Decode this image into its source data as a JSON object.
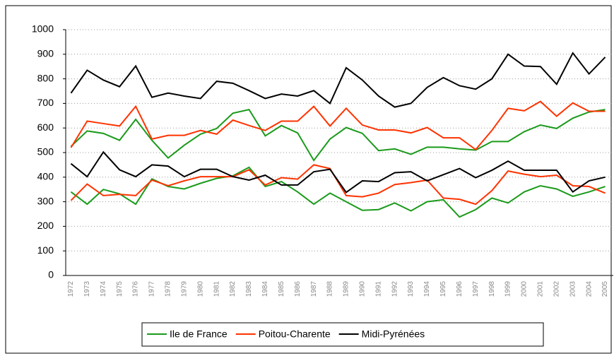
{
  "chart_data": {
    "type": "line",
    "categories": [
      "1972",
      "1973",
      "1974",
      "1975",
      "1976",
      "1977",
      "1978",
      "1979",
      "1980",
      "1981",
      "1982",
      "1983",
      "1984",
      "1985",
      "1986",
      "1987",
      "1988",
      "1989",
      "1990",
      "1991",
      "1992",
      "1993",
      "1994",
      "1995",
      "1996",
      "1997",
      "1998",
      "1999",
      "2000",
      "2001",
      "2002",
      "2003",
      "2004",
      "2005"
    ],
    "series": [
      {
        "name": "Ile de France",
        "color": "#1a9a1a",
        "values": [
          525,
          588,
          578,
          550,
          635,
          550,
          478,
          530,
          575,
          598,
          660,
          675,
          568,
          610,
          580,
          468,
          555,
          602,
          578,
          508,
          515,
          493,
          522,
          522,
          515,
          510,
          545,
          545,
          585,
          612,
          598,
          640,
          665,
          675
        ]
      },
      {
        "color": "#1a9a1a",
        "values": [
          340,
          290,
          350,
          332,
          290,
          393,
          362,
          352,
          375,
          395,
          405,
          440,
          362,
          382,
          340,
          290,
          335,
          300,
          265,
          268,
          295,
          263,
          300,
          308,
          238,
          268,
          315,
          295,
          340,
          365,
          352,
          322,
          340,
          362
        ]
      },
      {
        "name": "Poitou-Charente",
        "color": "#ff3300",
        "values": [
          520,
          628,
          618,
          608,
          688,
          555,
          570,
          570,
          590,
          575,
          632,
          610,
          590,
          628,
          628,
          688,
          608,
          680,
          612,
          592,
          592,
          580,
          602,
          560,
          560,
          512,
          590,
          680,
          670,
          708,
          648,
          702,
          668,
          668
        ]
      },
      {
        "color": "#ff3300",
        "values": [
          305,
          372,
          325,
          330,
          325,
          388,
          365,
          385,
          402,
          402,
          402,
          430,
          368,
          398,
          392,
          450,
          435,
          325,
          320,
          335,
          370,
          378,
          388,
          315,
          310,
          290,
          345,
          425,
          412,
          402,
          408,
          365,
          362,
          335
        ]
      },
      {
        "name": "Midi-Pyrénées",
        "color": "#000000",
        "values": [
          742,
          835,
          795,
          768,
          852,
          725,
          742,
          730,
          720,
          790,
          782,
          752,
          720,
          738,
          730,
          752,
          700,
          845,
          795,
          730,
          685,
          700,
          765,
          805,
          772,
          758,
          800,
          900,
          852,
          850,
          778,
          905,
          820,
          888
        ]
      },
      {
        "color": "#000000",
        "values": [
          455,
          402,
          502,
          430,
          402,
          450,
          445,
          402,
          432,
          432,
          402,
          388,
          408,
          368,
          368,
          422,
          432,
          338,
          385,
          382,
          418,
          422,
          385,
          410,
          435,
          398,
          428,
          465,
          428,
          428,
          428,
          340,
          385,
          400
        ]
      }
    ],
    "ylim": [
      0,
      1000
    ],
    "yticks": [
      0,
      100,
      200,
      300,
      400,
      500,
      600,
      700,
      800,
      900,
      1000
    ],
    "grid": true
  }
}
